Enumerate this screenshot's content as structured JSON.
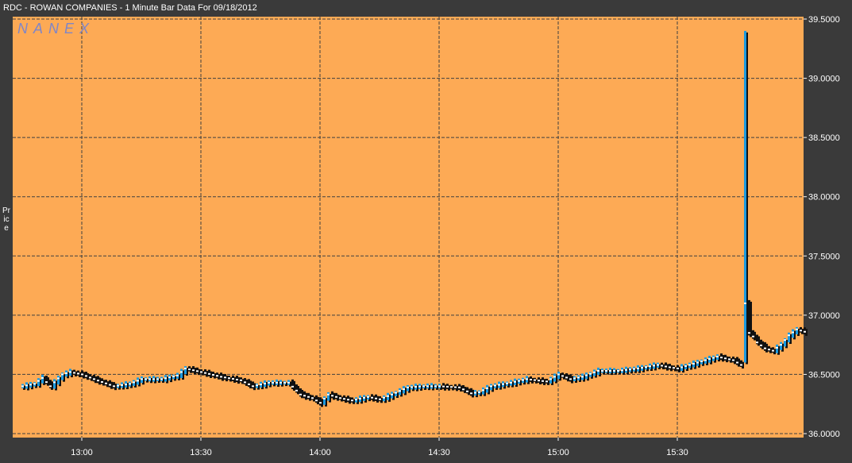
{
  "title": "RDC - ROWAN COMPANIES - 1 Minute Bar Data For 09/18/2012",
  "watermark": "NANEX",
  "colors": {
    "background": "#3a3a3a",
    "plot_background": "#fdaa55",
    "grid": "#404040",
    "bar_up": "#1b9ae0",
    "bar_dark": "#111111",
    "tick_marker": "#ffffff",
    "text": "#ffffff"
  },
  "chart_data": {
    "type": "bar",
    "style": "ohlc-minute-bars",
    "title": "RDC - ROWAN COMPANIES - 1 Minute Bar Data For 09/18/2012",
    "ylabel": "Price",
    "xlabel": "",
    "ylim": [
      36.0,
      39.5
    ],
    "yticks": [
      "39.5000",
      "39.0000",
      "38.5000",
      "38.0000",
      "37.5000",
      "37.0000",
      "36.5000",
      "36.0000"
    ],
    "xticks": [
      "13:00",
      "13:30",
      "14:00",
      "14:30",
      "15:00",
      "15:30"
    ],
    "xrange_minutes": [
      12.7,
      16.0
    ],
    "grid": true,
    "close_anchors": [
      [
        "12:45",
        36.4
      ],
      [
        "12:48",
        36.42
      ],
      [
        "12:50",
        36.47
      ],
      [
        "12:52",
        36.4
      ],
      [
        "12:55",
        36.5
      ],
      [
        "12:57",
        36.52
      ],
      [
        "13:00",
        36.5
      ],
      [
        "13:03",
        36.46
      ],
      [
        "13:08",
        36.4
      ],
      [
        "13:12",
        36.42
      ],
      [
        "13:15",
        36.46
      ],
      [
        "13:20",
        36.46
      ],
      [
        "13:24",
        36.49
      ],
      [
        "13:26",
        36.55
      ],
      [
        "13:30",
        36.52
      ],
      [
        "13:35",
        36.48
      ],
      [
        "13:40",
        36.45
      ],
      [
        "13:43",
        36.4
      ],
      [
        "13:47",
        36.43
      ],
      [
        "13:52",
        36.43
      ],
      [
        "13:55",
        36.33
      ],
      [
        "13:58",
        36.3
      ],
      [
        "14:00",
        36.26
      ],
      [
        "14:02",
        36.33
      ],
      [
        "14:05",
        36.3
      ],
      [
        "14:08",
        36.28
      ],
      [
        "14:12",
        36.31
      ],
      [
        "14:15",
        36.29
      ],
      [
        "14:18",
        36.33
      ],
      [
        "14:22",
        36.39
      ],
      [
        "14:26",
        36.4
      ],
      [
        "14:30",
        36.4
      ],
      [
        "14:35",
        36.39
      ],
      [
        "14:38",
        36.34
      ],
      [
        "14:40",
        36.35
      ],
      [
        "14:43",
        36.4
      ],
      [
        "14:48",
        36.43
      ],
      [
        "14:52",
        36.46
      ],
      [
        "14:57",
        36.44
      ],
      [
        "15:00",
        36.5
      ],
      [
        "15:03",
        36.46
      ],
      [
        "15:06",
        36.48
      ],
      [
        "15:10",
        36.53
      ],
      [
        "15:15",
        36.53
      ],
      [
        "15:20",
        36.55
      ],
      [
        "15:25",
        36.58
      ],
      [
        "15:28",
        36.56
      ],
      [
        "15:30",
        36.55
      ],
      [
        "15:35",
        36.6
      ],
      [
        "15:40",
        36.65
      ],
      [
        "15:44",
        36.62
      ],
      [
        "15:46",
        36.58
      ],
      [
        "15:47",
        37.1
      ],
      [
        "15:48",
        36.85
      ],
      [
        "15:49",
        36.82
      ],
      [
        "15:50",
        36.77
      ],
      [
        "15:52",
        36.72
      ],
      [
        "15:54",
        36.7
      ],
      [
        "15:56",
        36.75
      ],
      [
        "15:58",
        36.83
      ],
      [
        "16:00",
        36.88
      ],
      [
        "16:02",
        36.86
      ]
    ],
    "spike": {
      "time": "15:47",
      "high": 39.4,
      "low": 36.6
    }
  }
}
